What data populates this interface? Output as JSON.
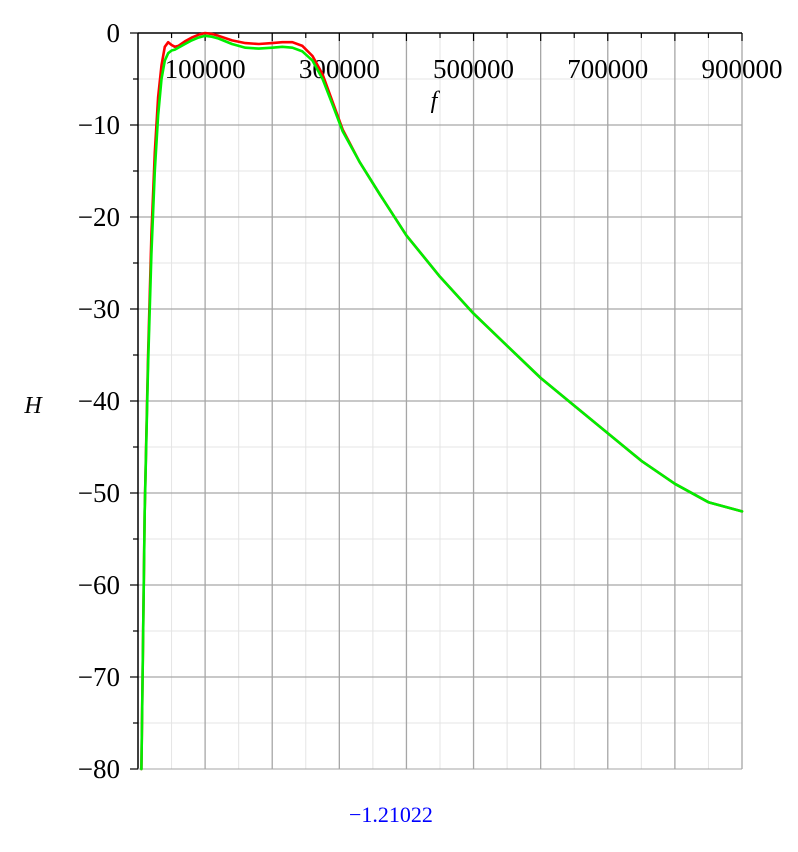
{
  "chart_data": {
    "type": "line",
    "xlabel": "f",
    "ylabel": "H",
    "xlim": [
      0,
      900000
    ],
    "ylim": [
      -80,
      0
    ],
    "x_ticks": [
      100000,
      300000,
      500000,
      700000,
      900000
    ],
    "y_ticks": [
      0,
      -10,
      -20,
      -30,
      -40,
      -50,
      -60,
      -70,
      -80
    ],
    "grid": true,
    "series": [
      {
        "color": "#ff0000",
        "points": [
          [
            5000,
            -80
          ],
          [
            10000,
            -52
          ],
          [
            15000,
            -35
          ],
          [
            20000,
            -22
          ],
          [
            25000,
            -13
          ],
          [
            30000,
            -7
          ],
          [
            35000,
            -3.5
          ],
          [
            40000,
            -1.5
          ],
          [
            45000,
            -1.0
          ],
          [
            50000,
            -1.3
          ],
          [
            55000,
            -1.5
          ],
          [
            60000,
            -1.4
          ],
          [
            70000,
            -0.9
          ],
          [
            80000,
            -0.5
          ],
          [
            90000,
            -0.2
          ],
          [
            100000,
            0
          ],
          [
            110000,
            -0.1
          ],
          [
            120000,
            -0.3
          ],
          [
            140000,
            -0.8
          ],
          [
            160000,
            -1.1
          ],
          [
            180000,
            -1.2
          ],
          [
            200000,
            -1.1
          ],
          [
            215000,
            -1.0
          ],
          [
            230000,
            -1.0
          ],
          [
            245000,
            -1.4
          ],
          [
            260000,
            -2.5
          ],
          [
            275000,
            -4.5
          ],
          [
            290000,
            -7.5
          ],
          [
            305000,
            -10.5
          ],
          [
            330000,
            -14
          ],
          [
            360000,
            -17.5
          ],
          [
            400000,
            -22
          ],
          [
            450000,
            -26.5
          ],
          [
            500000,
            -30.5
          ],
          [
            550000,
            -34
          ],
          [
            600000,
            -37.5
          ],
          [
            650000,
            -40.5
          ],
          [
            700000,
            -43.5
          ],
          [
            750000,
            -46.5
          ],
          [
            800000,
            -49
          ],
          [
            850000,
            -51
          ],
          [
            900000,
            -52
          ]
        ]
      },
      {
        "color": "#00ee00",
        "points": [
          [
            5000,
            -80
          ],
          [
            10000,
            -52
          ],
          [
            15000,
            -36
          ],
          [
            20000,
            -24
          ],
          [
            25000,
            -15
          ],
          [
            30000,
            -9
          ],
          [
            35000,
            -5
          ],
          [
            40000,
            -3
          ],
          [
            45000,
            -2.2
          ],
          [
            50000,
            -1.9
          ],
          [
            55000,
            -1.8
          ],
          [
            60000,
            -1.6
          ],
          [
            70000,
            -1.2
          ],
          [
            80000,
            -0.8
          ],
          [
            90000,
            -0.5
          ],
          [
            100000,
            -0.3
          ],
          [
            110000,
            -0.4
          ],
          [
            120000,
            -0.6
          ],
          [
            140000,
            -1.2
          ],
          [
            160000,
            -1.6
          ],
          [
            180000,
            -1.7
          ],
          [
            200000,
            -1.6
          ],
          [
            215000,
            -1.5
          ],
          [
            230000,
            -1.6
          ],
          [
            245000,
            -2.0
          ],
          [
            260000,
            -3.0
          ],
          [
            275000,
            -5.0
          ],
          [
            290000,
            -7.8
          ],
          [
            305000,
            -10.7
          ],
          [
            330000,
            -14
          ],
          [
            360000,
            -17.5
          ],
          [
            400000,
            -22
          ],
          [
            450000,
            -26.5
          ],
          [
            500000,
            -30.5
          ],
          [
            550000,
            -34
          ],
          [
            600000,
            -37.5
          ],
          [
            650000,
            -40.5
          ],
          [
            700000,
            -43.5
          ],
          [
            750000,
            -46.5
          ],
          [
            800000,
            -49
          ],
          [
            850000,
            -51
          ],
          [
            900000,
            -52
          ]
        ]
      }
    ]
  },
  "readout": "−1.21022"
}
